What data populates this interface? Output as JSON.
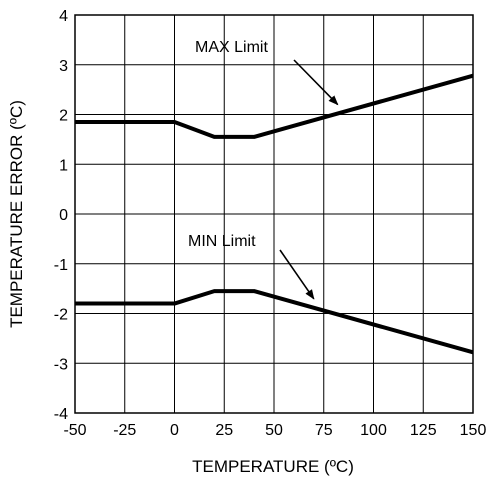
{
  "chart_data": {
    "type": "line",
    "title": "",
    "xlabel": "TEMPERATURE (ºC)",
    "ylabel": "TEMPERATURE ERROR (ºC)",
    "xlim": [
      -50,
      150
    ],
    "ylim": [
      -4,
      4
    ],
    "x_ticks": [
      -50,
      -25,
      0,
      25,
      50,
      75,
      100,
      125,
      150
    ],
    "y_ticks": [
      -4,
      -3,
      -2,
      -1,
      0,
      1,
      2,
      3,
      4
    ],
    "x_tick_labels": [
      "-50",
      "-25",
      "0",
      "25",
      "50",
      "75",
      "100",
      "125",
      "150"
    ],
    "y_tick_labels": [
      "-4",
      "-3",
      "-2",
      "-1",
      "0",
      "1",
      "2",
      "3",
      "4"
    ],
    "grid": true,
    "series": [
      {
        "name": "MAX Limit",
        "x": [
          -50,
          0,
          20,
          40,
          150
        ],
        "y": [
          1.85,
          1.85,
          1.55,
          1.55,
          2.78
        ]
      },
      {
        "name": "MIN Limit",
        "x": [
          -50,
          0,
          20,
          40,
          150
        ],
        "y": [
          -1.8,
          -1.8,
          -1.55,
          -1.55,
          -2.78
        ]
      }
    ],
    "annotations": [
      {
        "text": "MAX Limit",
        "series": 0,
        "arrow_to_x": 82
      },
      {
        "text": "MIN Limit",
        "series": 1,
        "arrow_to_x": 70
      }
    ]
  }
}
